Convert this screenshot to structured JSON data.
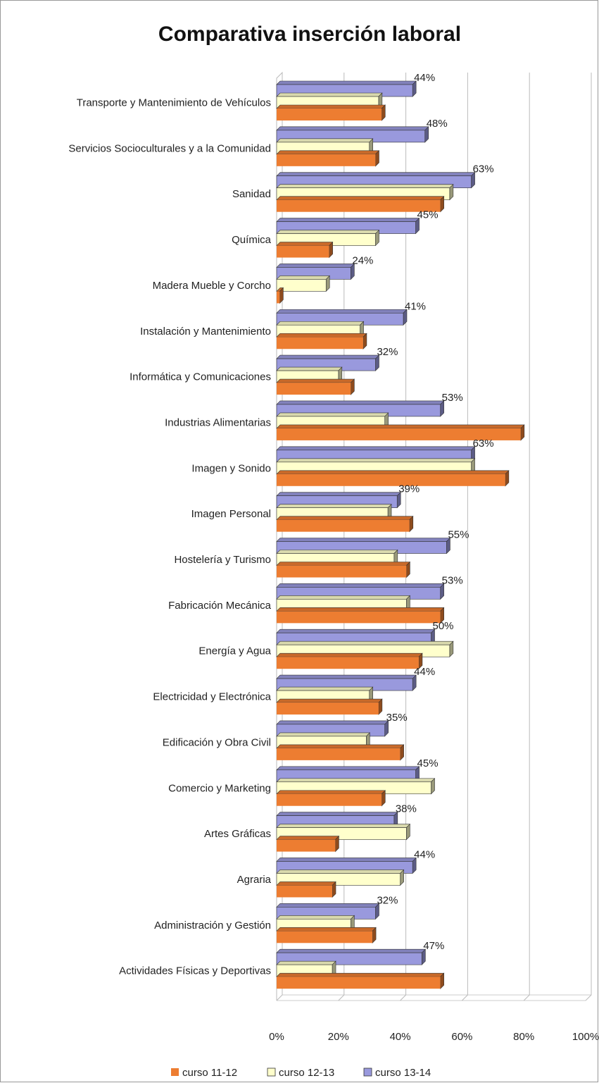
{
  "chart_data": {
    "type": "bar",
    "orientation": "horizontal",
    "three_d": true,
    "title": "Comparativa inserción laboral",
    "categories": [
      "Transporte y Mantenimiento de Vehículos",
      "Servicios Socioculturales y a la Comunidad",
      "Sanidad",
      "Química",
      "Madera Mueble y Corcho",
      "Instalación y Mantenimiento",
      "Informática y Comunicaciones",
      "Industrias Alimentarias",
      "Imagen y Sonido",
      "Imagen Personal",
      "Hostelería y Turismo",
      "Fabricación Mecánica",
      "Energía y Agua",
      "Electricidad y Electrónica",
      "Edificación y Obra Civil",
      "Comercio y Marketing",
      "Artes Gráficas",
      "Agraria",
      "Administración y Gestión",
      "Actividades Físicas y Deportivas"
    ],
    "series": [
      {
        "name": "curso 11-12",
        "color": "#ed7d31",
        "values": [
          34,
          32,
          53,
          17,
          1,
          28,
          24,
          79,
          74,
          43,
          42,
          53,
          46,
          33,
          40,
          34,
          19,
          18,
          31,
          53
        ]
      },
      {
        "name": "curso 12-13",
        "color": "#ffffcc",
        "values": [
          33,
          30,
          56,
          32,
          16,
          27,
          20,
          35,
          63,
          36,
          38,
          42,
          56,
          30,
          29,
          50,
          42,
          40,
          24,
          18
        ]
      },
      {
        "name": "curso 13-14",
        "color": "#9999dd",
        "values": [
          44,
          48,
          63,
          45,
          24,
          41,
          32,
          53,
          63,
          39,
          55,
          53,
          50,
          44,
          35,
          45,
          38,
          44,
          32,
          47
        ],
        "value_labels": [
          "44%",
          "48%",
          "63%",
          "45%",
          "24%",
          "41%",
          "32%",
          "53%",
          "63%",
          "39%",
          "55%",
          "53%",
          "50%",
          "44%",
          "35%",
          "45%",
          "38%",
          "44%",
          "32%",
          "47%"
        ]
      }
    ],
    "xlim": [
      0,
      100
    ],
    "xticks": [
      {
        "value": 0,
        "label": "0%"
      },
      {
        "value": 20,
        "label": "20%"
      },
      {
        "value": 40,
        "label": "40%"
      },
      {
        "value": 60,
        "label": "60%"
      },
      {
        "value": 80,
        "label": "80%"
      },
      {
        "value": 100,
        "label": "100%"
      }
    ],
    "grid": true,
    "legend": "bottom"
  }
}
